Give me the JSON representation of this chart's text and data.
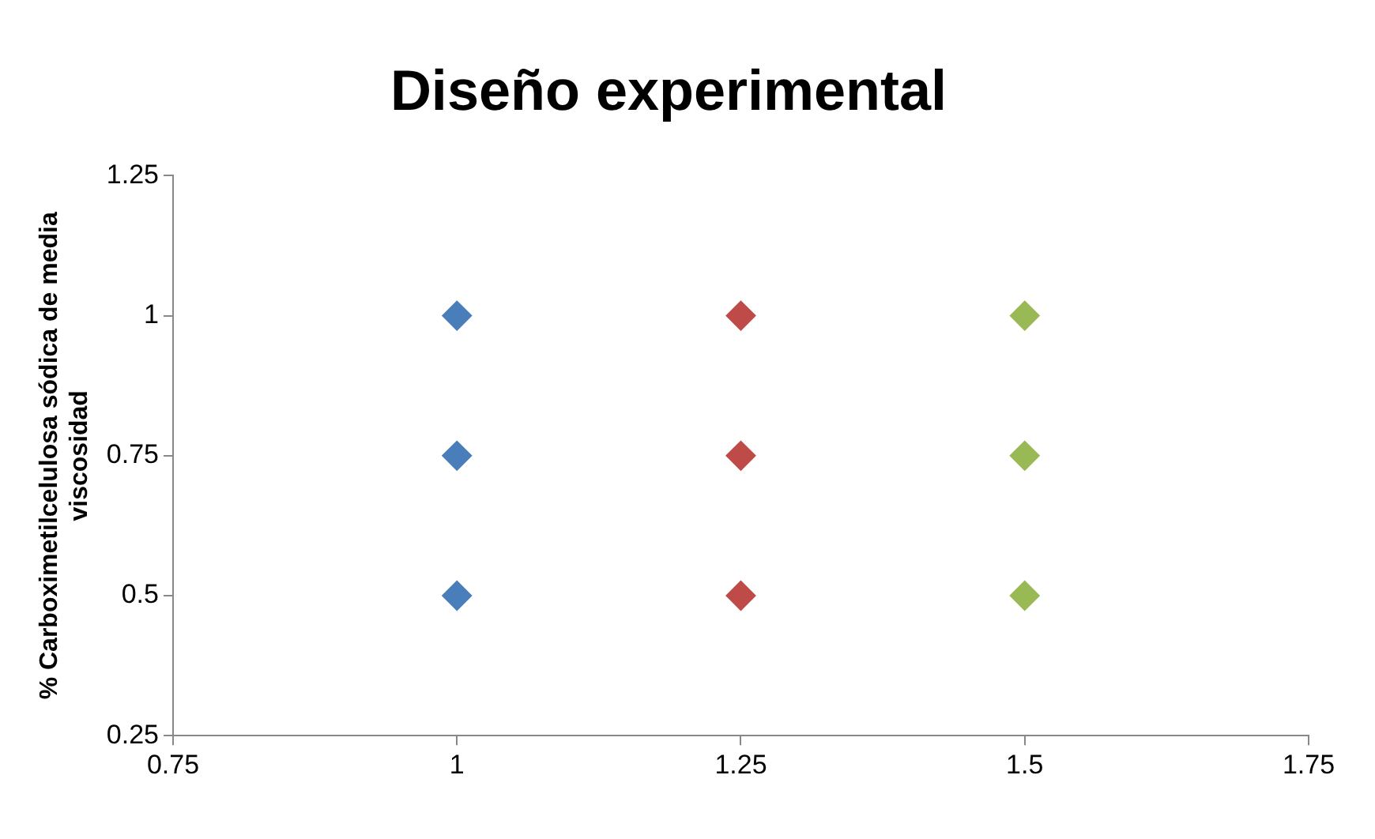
{
  "chart_data": {
    "type": "scatter",
    "title": "Diseño experimental",
    "ylabel": "% Carboximetilcelulosa sódica de media viscosidad",
    "marker": "diamond",
    "xlim": [
      0.75,
      1.75
    ],
    "xticks": [
      0.75,
      1,
      1.25,
      1.5,
      1.75
    ],
    "ylim": [
      0.25,
      1.25
    ],
    "yticks": [
      0.25,
      0.5,
      0.75,
      1,
      1.25
    ],
    "series": [
      {
        "color": "#4a7ebb",
        "x": [
          1,
          1,
          1
        ],
        "values": [
          1,
          0.75,
          0.5
        ]
      },
      {
        "color": "#be4b48",
        "x": [
          1.25,
          1.25,
          1.25
        ],
        "values": [
          1,
          0.75,
          0.5
        ]
      },
      {
        "color": "#98b954",
        "x": [
          1.5,
          1.5,
          1.5
        ],
        "values": [
          1,
          0.75,
          0.5
        ]
      }
    ]
  }
}
